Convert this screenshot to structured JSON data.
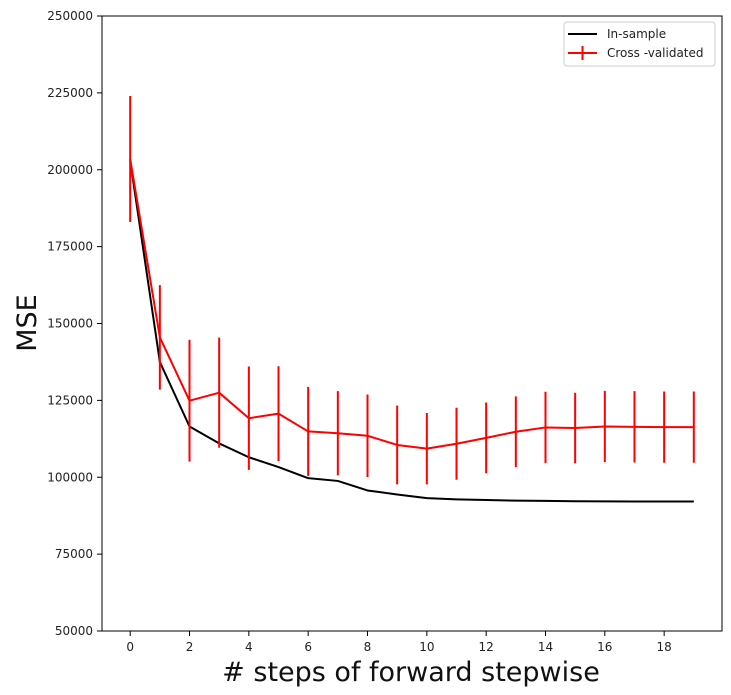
{
  "chart_data": {
    "type": "line",
    "xlabel": "# steps of forward stepwise",
    "ylabel": "MSE",
    "xlim": [
      -0.95,
      19.95
    ],
    "ylim": [
      50000,
      250000
    ],
    "xticks": [
      0,
      2,
      4,
      6,
      8,
      10,
      12,
      14,
      16,
      18
    ],
    "yticks": [
      50000,
      75000,
      100000,
      125000,
      150000,
      175000,
      200000,
      225000,
      250000
    ],
    "grid": false,
    "legend_position": "top-right",
    "x": [
      0,
      1,
      2,
      3,
      4,
      5,
      6,
      7,
      8,
      9,
      10,
      11,
      12,
      13,
      14,
      15,
      16,
      17,
      18,
      19
    ],
    "series": [
      {
        "name": "In-sample",
        "color": "#000000",
        "values": [
          203000,
          137500,
          116500,
          111000,
          106500,
          103300,
          99700,
          98800,
          95700,
          94400,
          93200,
          92800,
          92600,
          92400,
          92300,
          92200,
          92150,
          92100,
          92100,
          92100
        ]
      },
      {
        "name": "Cross -validated",
        "color": "#ff0000",
        "values": [
          203500,
          145500,
          124900,
          127500,
          119200,
          120700,
          114900,
          114300,
          113500,
          110500,
          109300,
          110900,
          112800,
          114800,
          116200,
          116000,
          116500,
          116400,
          116300,
          116300
        ],
        "errors": [
          20500,
          17000,
          19800,
          17900,
          16800,
          15400,
          14500,
          13700,
          13400,
          12800,
          11600,
          11700,
          11500,
          11500,
          11600,
          11500,
          11600,
          11600,
          11600,
          11600
        ]
      }
    ]
  }
}
